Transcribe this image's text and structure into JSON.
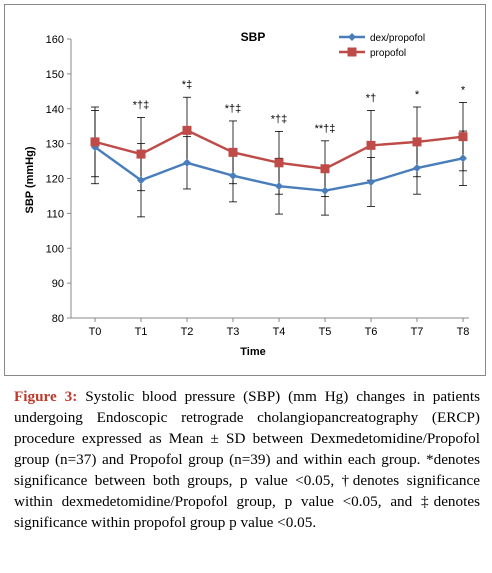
{
  "chart_data": {
    "type": "line",
    "title": "SBP",
    "xlabel": "Time",
    "ylabel": "SBP (mmHg)",
    "ylim": [
      80,
      160
    ],
    "yticks": [
      80,
      90,
      100,
      110,
      120,
      130,
      140,
      150,
      160
    ],
    "categories": [
      "T0",
      "T1",
      "T2",
      "T3",
      "T4",
      "T5",
      "T6",
      "T7",
      "T8"
    ],
    "legend_position": "top-right",
    "grid": false,
    "series": [
      {
        "name": "dex/propofol",
        "color": "#4a7ebb",
        "marker": "diamond",
        "values": [
          129,
          119.5,
          124.5,
          120.8,
          117.8,
          116.5,
          119,
          123,
          125.8
        ],
        "error": [
          10.5,
          10.5,
          7.5,
          7.5,
          8,
          7,
          7,
          7.5,
          7.8
        ]
      },
      {
        "name": "propofol",
        "color": "#be4b48",
        "marker": "square",
        "values": [
          130.5,
          127,
          133.8,
          127.5,
          124.5,
          122.8,
          129.5,
          130.5,
          132
        ],
        "error": [
          10,
          10.5,
          9.5,
          9,
          9,
          8,
          10,
          10,
          9.8
        ]
      }
    ],
    "annotations": [
      "",
      "*†‡",
      "*‡",
      "*†‡",
      "*†‡",
      "**†‡",
      "*†",
      "*",
      "*"
    ]
  },
  "caption": {
    "label": "Figure 3:",
    "text": "Systolic blood pressure (SBP) (mm Hg) changes in patients undergoing Endoscopic retrograde cholangiopancreatography (ERCP) procedure expressed as Mean ± SD between Dexmedetomidine/Propofol group (n=37) and Propofol group (n=39) and within each group. *denotes significance between both groups, p value <0.05, †denotes significance within dexmedetomidine/Propofol group, p value <0.05, and ‡denotes significance within propofol group p value <0.05."
  }
}
